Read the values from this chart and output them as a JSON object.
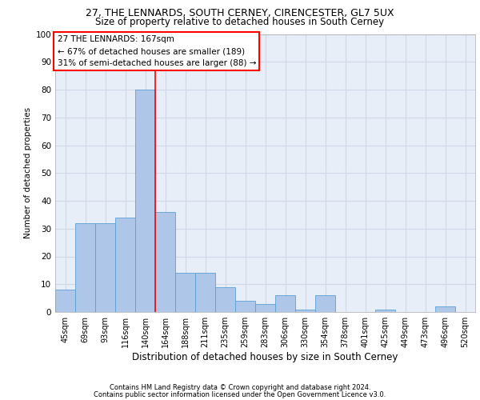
{
  "title1": "27, THE LENNARDS, SOUTH CERNEY, CIRENCESTER, GL7 5UX",
  "title2": "Size of property relative to detached houses in South Cerney",
  "xlabel": "Distribution of detached houses by size in South Cerney",
  "ylabel": "Number of detached properties",
  "footnote1": "Contains HM Land Registry data © Crown copyright and database right 2024.",
  "footnote2": "Contains public sector information licensed under the Open Government Licence v3.0.",
  "categories": [
    "45sqm",
    "69sqm",
    "93sqm",
    "116sqm",
    "140sqm",
    "164sqm",
    "188sqm",
    "211sqm",
    "235sqm",
    "259sqm",
    "283sqm",
    "306sqm",
    "330sqm",
    "354sqm",
    "378sqm",
    "401sqm",
    "425sqm",
    "449sqm",
    "473sqm",
    "496sqm",
    "520sqm"
  ],
  "values": [
    8,
    32,
    32,
    34,
    80,
    36,
    14,
    14,
    9,
    4,
    3,
    6,
    1,
    6,
    0,
    0,
    1,
    0,
    0,
    2,
    0
  ],
  "bar_color": "#aec6e8",
  "bar_edge_color": "#5a9fd4",
  "grid_color": "#d0d8e8",
  "bg_color": "#e8eef8",
  "vline_x": 4.5,
  "vline_color": "red",
  "annotation_text": "27 THE LENNARDS: 167sqm\n← 67% of detached houses are smaller (189)\n31% of semi-detached houses are larger (88) →",
  "annotation_box_color": "white",
  "annotation_box_edge": "red",
  "ylim": [
    0,
    100
  ],
  "yticks": [
    0,
    10,
    20,
    30,
    40,
    50,
    60,
    70,
    80,
    90,
    100
  ],
  "title1_fontsize": 9,
  "title2_fontsize": 8.5,
  "xlabel_fontsize": 8.5,
  "ylabel_fontsize": 7.5,
  "tick_fontsize": 7,
  "footnote_fontsize": 6,
  "annotation_fontsize": 7.5
}
